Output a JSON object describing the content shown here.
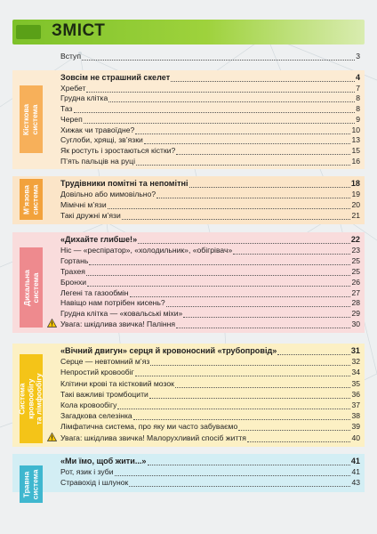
{
  "title": "ЗМІСТ",
  "intro": {
    "title": "Вступ",
    "page": "3"
  },
  "sections": [
    {
      "tab": "Кісткова\nсистема",
      "color": "#f7b05a",
      "band": "#fcebd3",
      "entries": [
        {
          "title": "Зовсім не страшний скелет",
          "page": "4",
          "bold": true
        },
        {
          "title": "Хребет",
          "page": "7"
        },
        {
          "title": "Грудна клітка",
          "page": "8"
        },
        {
          "title": "Таз",
          "page": "8"
        },
        {
          "title": "Череп",
          "page": "9"
        },
        {
          "title": "Хижак чи травоїдне?",
          "page": "10"
        },
        {
          "title": "Суглоби, хрящі, зв’язки",
          "page": "13"
        },
        {
          "title": "Як ростуть і зростаються кістки?",
          "page": "15"
        },
        {
          "title": "П’ять пальців на руці",
          "page": "16"
        }
      ]
    },
    {
      "tab": "М’язова\nсистема",
      "color": "#f2a23c",
      "band": "#fbe5c8",
      "entries": [
        {
          "title": "Трудівники помітні та непомітні",
          "page": "18",
          "bold": true
        },
        {
          "title": "Довільно або мимовільно?",
          "page": "19"
        },
        {
          "title": "Мімічні м’язи",
          "page": "20"
        },
        {
          "title": "Такі дружні м’язи",
          "page": "21"
        }
      ]
    },
    {
      "tab": "Дихальна\nсистема",
      "color": "#ee8a8e",
      "band": "#f9dcdc",
      "entries": [
        {
          "title": "«Дихайте глибше!»",
          "page": "22",
          "bold": true
        },
        {
          "title": "Ніс — «респіратор», «холодильник», «обігрівач»",
          "page": "23"
        },
        {
          "title": "Гортань",
          "page": "25"
        },
        {
          "title": "Трахея",
          "page": "25"
        },
        {
          "title": "Бронхи",
          "page": "26"
        },
        {
          "title": "Легені та газообмін",
          "page": "27"
        },
        {
          "title": "Навіщо нам потрібен кисень?",
          "page": "28"
        },
        {
          "title": "Грудна клітка — «ковальські міхи»",
          "page": "29"
        },
        {
          "title": "Увага: шкідлива звичка! Паління",
          "page": "30",
          "warn": true
        }
      ]
    },
    {
      "tab": "Система\nкровообігу\nта лімфообігу",
      "color": "#f4c418",
      "band": "#fcf0c4",
      "entries": [
        {
          "title": "«Вічний двигун» серця й кровоносний «трубопровід»",
          "page": "31",
          "bold": true
        },
        {
          "title": "Серце — невтомний м’яз",
          "page": "32"
        },
        {
          "title": "Непростий кровообіг",
          "page": "34"
        },
        {
          "title": "Клітини крові та кістковий мозок",
          "page": "35"
        },
        {
          "title": "Такі важливі тромбоцити",
          "page": "36"
        },
        {
          "title": "Кола кровообігу",
          "page": "37"
        },
        {
          "title": "Загадкова селезінка",
          "page": "38"
        },
        {
          "title": "Лімфатична система, про яку ми часто забуваємо",
          "page": "39"
        },
        {
          "title": "Увага: шкідлива звичка! Малорухливий спосіб життя",
          "page": "40",
          "warn": true
        }
      ]
    },
    {
      "tab": "Травна\nсистема",
      "color": "#3fb7cf",
      "band": "#d3eef4",
      "entries": [
        {
          "title": "«Ми їмо, щоб жити...»",
          "page": "41",
          "bold": true
        },
        {
          "title": "Рот, язик і зуби",
          "page": "41"
        },
        {
          "title": "Стравохід і шлунок",
          "page": "43"
        }
      ]
    }
  ]
}
